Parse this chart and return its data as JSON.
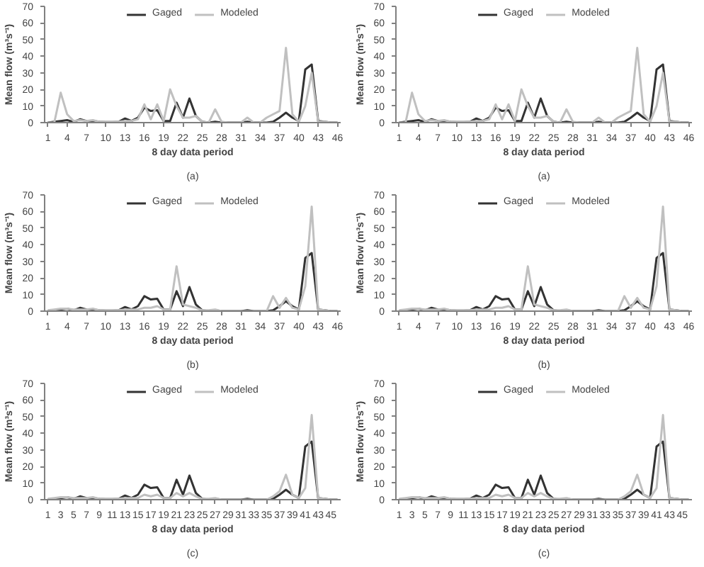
{
  "chart_data": [
    {
      "type": "line",
      "xlabel": "8 day data period",
      "ylabel": "Mean flow (m³s⁻¹)",
      "annotations": [
        "(a)"
      ],
      "x": [
        1,
        2,
        3,
        4,
        5,
        6,
        7,
        8,
        9,
        10,
        11,
        12,
        13,
        14,
        15,
        16,
        17,
        18,
        19,
        20,
        21,
        22,
        23,
        24,
        25,
        26,
        27,
        28,
        29,
        30,
        31,
        32,
        33,
        34,
        35,
        36,
        37,
        38,
        39,
        40,
        41,
        42,
        43,
        44,
        45,
        46
      ],
      "xlim": [
        0.5,
        46.5
      ],
      "xticks": [
        1,
        4,
        7,
        10,
        13,
        16,
        19,
        22,
        25,
        28,
        31,
        34,
        37,
        40,
        43,
        46
      ],
      "ylim": [
        0,
        70
      ],
      "yticks": [
        0,
        10,
        20,
        30,
        40,
        50,
        60,
        70
      ],
      "grid": false,
      "legend": "top",
      "series": [
        {
          "name": "Gaged",
          "color": "#333333",
          "values": [
            0,
            0.5,
            1,
            1.5,
            0.5,
            2,
            1,
            1,
            0.5,
            0.3,
            0.3,
            0.5,
            2.5,
            1,
            3,
            9,
            7,
            7.5,
            1,
            1,
            12,
            3,
            14.5,
            4,
            0.5,
            0,
            0.5,
            0,
            0,
            0,
            0,
            0.5,
            0,
            0,
            0,
            0.5,
            3,
            6,
            3,
            1,
            32,
            35,
            1,
            0.5,
            0,
            0
          ]
        },
        {
          "name": "Modeled",
          "color": "#c0c0c0",
          "values": [
            0,
            0,
            18,
            5,
            1,
            1.5,
            1,
            1.5,
            0.5,
            0.5,
            0.5,
            0.5,
            1,
            1,
            2,
            11,
            2,
            11,
            1,
            20,
            10,
            3,
            3,
            4,
            0.5,
            0,
            8,
            0.5,
            0,
            0,
            0,
            3,
            0,
            0,
            3,
            5,
            7,
            45,
            5,
            0.5,
            10,
            30,
            0.5,
            0.5,
            0,
            0
          ]
        }
      ]
    },
    {
      "type": "line",
      "xlabel": "8 day data period",
      "ylabel": "Mean flow (m³s⁻¹)",
      "annotations": [
        "(a)"
      ],
      "x": [
        1,
        2,
        3,
        4,
        5,
        6,
        7,
        8,
        9,
        10,
        11,
        12,
        13,
        14,
        15,
        16,
        17,
        18,
        19,
        20,
        21,
        22,
        23,
        24,
        25,
        26,
        27,
        28,
        29,
        30,
        31,
        32,
        33,
        34,
        35,
        36,
        37,
        38,
        39,
        40,
        41,
        42,
        43,
        44,
        45,
        46
      ],
      "xlim": [
        0.5,
        46.5
      ],
      "xticks": [
        1,
        4,
        7,
        10,
        13,
        16,
        19,
        22,
        25,
        28,
        31,
        34,
        37,
        40,
        43,
        46
      ],
      "ylim": [
        0,
        70
      ],
      "yticks": [
        0,
        10,
        20,
        30,
        40,
        50,
        60,
        70
      ],
      "grid": false,
      "legend": "top",
      "series": [
        {
          "name": "Gaged",
          "color": "#333333",
          "values": [
            0,
            0.5,
            1,
            1.5,
            0.5,
            2,
            1,
            1,
            0.5,
            0.3,
            0.3,
            0.5,
            2.5,
            1,
            3,
            9,
            7,
            7.5,
            1,
            1,
            12,
            3,
            14.5,
            4,
            0.5,
            0,
            0.5,
            0,
            0,
            0,
            0,
            0.5,
            0,
            0,
            0,
            0.5,
            3,
            6,
            3,
            1,
            32,
            35,
            1,
            0.5,
            0,
            0
          ]
        },
        {
          "name": "Modeled",
          "color": "#c0c0c0",
          "values": [
            0,
            0,
            18,
            5,
            1,
            1.5,
            1,
            1.5,
            0.5,
            0.5,
            0.5,
            0.5,
            1,
            1,
            2,
            11,
            2,
            11,
            1,
            20,
            10,
            3,
            3,
            4,
            0.5,
            0,
            8,
            0.5,
            0,
            0,
            0,
            3,
            0,
            0,
            3,
            5,
            7,
            45,
            5,
            0.5,
            10,
            30,
            0.5,
            0.5,
            0,
            0
          ]
        }
      ]
    },
    {
      "type": "line",
      "xlabel": "8 day data period",
      "ylabel": "Mean flow (m³s⁻¹)",
      "annotations": [
        "(b)"
      ],
      "x": [
        1,
        2,
        3,
        4,
        5,
        6,
        7,
        8,
        9,
        10,
        11,
        12,
        13,
        14,
        15,
        16,
        17,
        18,
        19,
        20,
        21,
        22,
        23,
        24,
        25,
        26,
        27,
        28,
        29,
        30,
        31,
        32,
        33,
        34,
        35,
        36,
        37,
        38,
        39,
        40,
        41,
        42,
        43,
        44,
        45,
        46
      ],
      "xlim": [
        0.5,
        46.5
      ],
      "xticks": [
        1,
        4,
        7,
        10,
        13,
        16,
        19,
        22,
        25,
        28,
        31,
        34,
        37,
        40,
        43,
        46
      ],
      "ylim": [
        0,
        70
      ],
      "yticks": [
        0,
        10,
        20,
        30,
        40,
        50,
        60,
        70
      ],
      "grid": false,
      "legend": "top",
      "series": [
        {
          "name": "Gaged",
          "color": "#333333",
          "values": [
            0,
            0.5,
            1,
            1.5,
            0.5,
            2,
            1,
            1,
            0.5,
            0.3,
            0.3,
            0.5,
            2.5,
            1,
            3,
            9,
            7,
            7.5,
            1,
            1,
            12,
            3,
            14.5,
            4,
            0.5,
            0,
            0.5,
            0,
            0,
            0,
            0,
            0.5,
            0,
            0,
            0,
            0.5,
            3,
            6,
            3,
            1,
            32,
            35,
            1,
            0.5,
            0,
            0
          ]
        },
        {
          "name": "Modeled",
          "color": "#c0c0c0",
          "values": [
            0.5,
            1,
            1.5,
            1.5,
            1,
            1,
            1,
            1.5,
            0.5,
            0.5,
            0.5,
            0.5,
            1,
            1,
            1,
            2,
            2,
            3,
            1,
            1,
            27,
            4,
            3,
            2,
            0.5,
            0.5,
            1,
            0,
            0,
            0,
            0,
            0,
            0,
            0,
            0,
            9,
            2,
            8,
            2,
            1,
            15,
            63,
            1,
            0.5,
            0,
            0
          ]
        }
      ]
    },
    {
      "type": "line",
      "xlabel": "8 day data period",
      "ylabel": "Mean flow (m³s⁻¹)",
      "annotations": [
        "(b)"
      ],
      "x": [
        1,
        2,
        3,
        4,
        5,
        6,
        7,
        8,
        9,
        10,
        11,
        12,
        13,
        14,
        15,
        16,
        17,
        18,
        19,
        20,
        21,
        22,
        23,
        24,
        25,
        26,
        27,
        28,
        29,
        30,
        31,
        32,
        33,
        34,
        35,
        36,
        37,
        38,
        39,
        40,
        41,
        42,
        43,
        44,
        45,
        46
      ],
      "xlim": [
        0.5,
        46.5
      ],
      "xticks": [
        1,
        4,
        7,
        10,
        13,
        16,
        19,
        22,
        25,
        28,
        31,
        34,
        37,
        40,
        43,
        46
      ],
      "ylim": [
        0,
        70
      ],
      "yticks": [
        0,
        10,
        20,
        30,
        40,
        50,
        60,
        70
      ],
      "grid": false,
      "legend": "top",
      "series": [
        {
          "name": "Gaged",
          "color": "#333333",
          "values": [
            0,
            0.5,
            1,
            1.5,
            0.5,
            2,
            1,
            1,
            0.5,
            0.3,
            0.3,
            0.5,
            2.5,
            1,
            3,
            9,
            7,
            7.5,
            1,
            1,
            12,
            3,
            14.5,
            4,
            0.5,
            0,
            0.5,
            0,
            0,
            0,
            0,
            0.5,
            0,
            0,
            0,
            0.5,
            3,
            6,
            3,
            1,
            32,
            35,
            1,
            0.5,
            0,
            0
          ]
        },
        {
          "name": "Modeled",
          "color": "#c0c0c0",
          "values": [
            0.5,
            1,
            1.5,
            1.5,
            1,
            1,
            1,
            1.5,
            0.5,
            0.5,
            0.5,
            0.5,
            1,
            1,
            1,
            2,
            2,
            3,
            1,
            1,
            27,
            4,
            3,
            2,
            0.5,
            0.5,
            1,
            0,
            0,
            0,
            0,
            0,
            0,
            0,
            0,
            9,
            2,
            8,
            2,
            1,
            15,
            63,
            1,
            0.5,
            0,
            0
          ]
        }
      ]
    },
    {
      "type": "line",
      "xlabel": "8 day data period",
      "ylabel": "Mean flow (m³s⁻¹)",
      "annotations": [
        "(c)"
      ],
      "x": [
        1,
        2,
        3,
        4,
        5,
        6,
        7,
        8,
        9,
        10,
        11,
        12,
        13,
        14,
        15,
        16,
        17,
        18,
        19,
        20,
        21,
        22,
        23,
        24,
        25,
        26,
        27,
        28,
        29,
        30,
        31,
        32,
        33,
        34,
        35,
        36,
        37,
        38,
        39,
        40,
        41,
        42,
        43,
        44,
        45,
        46
      ],
      "xlim": [
        0.5,
        46.5
      ],
      "xticks": [
        1,
        3,
        5,
        7,
        9,
        11,
        13,
        15,
        17,
        19,
        21,
        23,
        25,
        27,
        29,
        31,
        33,
        35,
        37,
        39,
        41,
        43,
        45
      ],
      "ylim": [
        0,
        70
      ],
      "yticks": [
        0,
        10,
        20,
        30,
        40,
        50,
        60,
        70
      ],
      "grid": false,
      "legend": "top",
      "series": [
        {
          "name": "Gaged",
          "color": "#333333",
          "values": [
            0,
            0.5,
            1,
            1.5,
            0.5,
            2,
            1,
            1,
            0.5,
            0.3,
            0.3,
            0.5,
            2.5,
            1,
            3,
            9,
            7,
            7.5,
            1,
            1,
            12,
            3,
            14.5,
            4,
            0.5,
            0,
            0.5,
            0,
            0,
            0,
            0,
            0.5,
            0,
            0,
            0,
            0.5,
            3,
            6,
            3,
            1,
            32,
            35,
            1,
            0.5,
            0,
            0
          ]
        },
        {
          "name": "Modeled",
          "color": "#c0c0c0",
          "values": [
            0.5,
            1,
            1.5,
            1.5,
            1,
            1,
            1,
            1.5,
            0.5,
            0.5,
            0.5,
            0.5,
            1,
            1,
            1,
            3,
            2,
            3,
            1,
            1,
            4,
            2,
            4,
            2,
            0.5,
            0.5,
            1,
            0,
            0,
            0,
            0,
            0,
            0,
            0,
            0,
            2,
            5,
            15,
            3,
            1,
            7,
            51,
            1,
            0.5,
            0,
            0
          ]
        }
      ]
    },
    {
      "type": "line",
      "xlabel": "8 day data period",
      "ylabel": "Mean flow (m³s⁻¹)",
      "annotations": [
        "(c)"
      ],
      "x": [
        1,
        2,
        3,
        4,
        5,
        6,
        7,
        8,
        9,
        10,
        11,
        12,
        13,
        14,
        15,
        16,
        17,
        18,
        19,
        20,
        21,
        22,
        23,
        24,
        25,
        26,
        27,
        28,
        29,
        30,
        31,
        32,
        33,
        34,
        35,
        36,
        37,
        38,
        39,
        40,
        41,
        42,
        43,
        44,
        45,
        46
      ],
      "xlim": [
        0.5,
        46.5
      ],
      "xticks": [
        1,
        3,
        5,
        7,
        9,
        11,
        13,
        15,
        17,
        19,
        21,
        23,
        25,
        27,
        29,
        31,
        33,
        35,
        37,
        39,
        41,
        43,
        45
      ],
      "ylim": [
        0,
        70
      ],
      "yticks": [
        0,
        10,
        20,
        30,
        40,
        50,
        60,
        70
      ],
      "grid": false,
      "legend": "top",
      "series": [
        {
          "name": "Gaged",
          "color": "#333333",
          "values": [
            0,
            0.5,
            1,
            1.5,
            0.5,
            2,
            1,
            1,
            0.5,
            0.3,
            0.3,
            0.5,
            2.5,
            1,
            3,
            9,
            7,
            7.5,
            1,
            1,
            12,
            3,
            14.5,
            4,
            0.5,
            0,
            0.5,
            0,
            0,
            0,
            0,
            0.5,
            0,
            0,
            0,
            0.5,
            3,
            6,
            3,
            1,
            32,
            35,
            1,
            0.5,
            0,
            0
          ]
        },
        {
          "name": "Modeled",
          "color": "#c0c0c0",
          "values": [
            0.5,
            1,
            1.5,
            1.5,
            1,
            1,
            1,
            1.5,
            0.5,
            0.5,
            0.5,
            0.5,
            1,
            1,
            1,
            3,
            2,
            3,
            1,
            1,
            4,
            2,
            4,
            2,
            0.5,
            0.5,
            1,
            0,
            0,
            0,
            0,
            0,
            0,
            0,
            0,
            2,
            5,
            15,
            3,
            1,
            7,
            51,
            1,
            0.5,
            0,
            0
          ]
        }
      ]
    }
  ]
}
